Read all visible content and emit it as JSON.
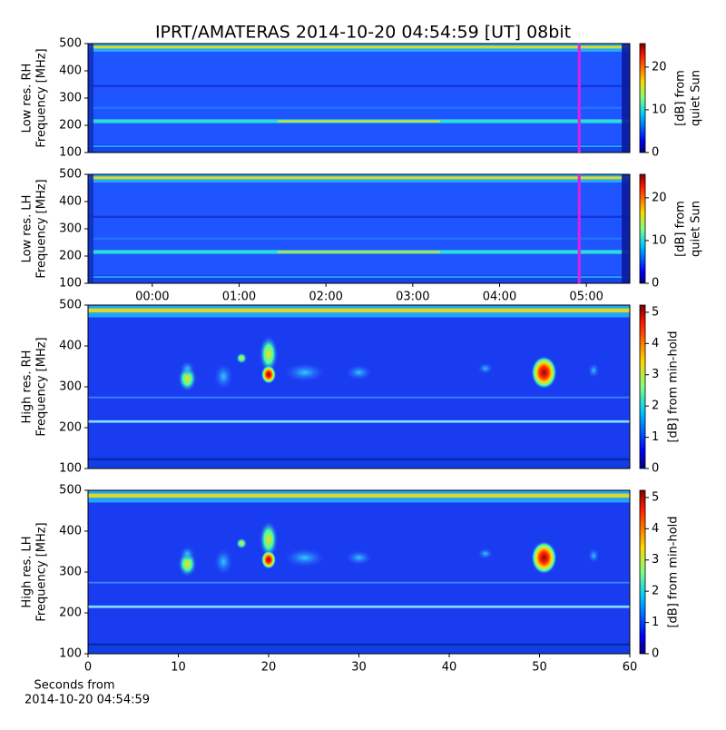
{
  "title": "IPRT/AMATERAS 2014-10-20 04:54:59 [UT]   08bit",
  "chart_data": [
    {
      "type": "heatmap",
      "ylabel": [
        "Low res. RH",
        "Frequency [MHz]"
      ],
      "ylim": [
        100,
        500
      ],
      "yticks": [
        100,
        200,
        300,
        400,
        500
      ],
      "xlim": [
        -0.74,
        5.5
      ],
      "colormap": "jet",
      "marker_x": 4.917,
      "marker_color": "#e020e0",
      "colorbar": {
        "label": [
          "[dB] from",
          "quiet Sun"
        ],
        "lim": [
          0,
          25.5
        ],
        "ticks": [
          0,
          10,
          20
        ]
      }
    },
    {
      "type": "heatmap",
      "ylabel": [
        "Low res. LH",
        "Frequency [MHz]"
      ],
      "ylim": [
        100,
        500
      ],
      "yticks": [
        100,
        200,
        300,
        400,
        500
      ],
      "xlim": [
        -0.74,
        5.5
      ],
      "xticks": [
        {
          "value": 0,
          "label": "00:00"
        },
        {
          "value": 1,
          "label": "01:00"
        },
        {
          "value": 2,
          "label": "02:00"
        },
        {
          "value": 3,
          "label": "03:00"
        },
        {
          "value": 4,
          "label": "04:00"
        },
        {
          "value": 5,
          "label": "05:00"
        }
      ],
      "colormap": "jet",
      "marker_x": 4.917,
      "marker_color": "#e020e0",
      "colorbar": {
        "label": [
          "[dB] from",
          "quiet Sun"
        ],
        "lim": [
          0,
          25.5
        ],
        "ticks": [
          0,
          10,
          20
        ]
      }
    },
    {
      "type": "heatmap",
      "ylabel": [
        "High res. RH",
        "Frequency [MHz]"
      ],
      "ylim": [
        100,
        500
      ],
      "yticks": [
        100,
        200,
        300,
        400,
        500
      ],
      "xlim": [
        0,
        60
      ],
      "colormap": "jet",
      "colorbar": {
        "label": [
          "[dB] from min-hold"
        ],
        "lim": [
          0,
          5.23
        ],
        "ticks": [
          0,
          1,
          2,
          3,
          4,
          5
        ]
      }
    },
    {
      "type": "heatmap",
      "ylabel": [
        "High res. LH",
        "Frequency [MHz]"
      ],
      "ylim": [
        100,
        500
      ],
      "yticks": [
        100,
        200,
        300,
        400,
        500
      ],
      "xlim": [
        0,
        60
      ],
      "xticks": [
        0,
        10,
        20,
        30,
        40,
        50,
        60
      ],
      "xlabel": [
        "Seconds from",
        "2014-10-20 04:54:59"
      ],
      "colormap": "jet",
      "colorbar": {
        "label": [
          "[dB] from min-hold"
        ],
        "lim": [
          0,
          5.23
        ],
        "ticks": [
          0,
          1,
          2,
          3,
          4,
          5
        ]
      }
    }
  ]
}
